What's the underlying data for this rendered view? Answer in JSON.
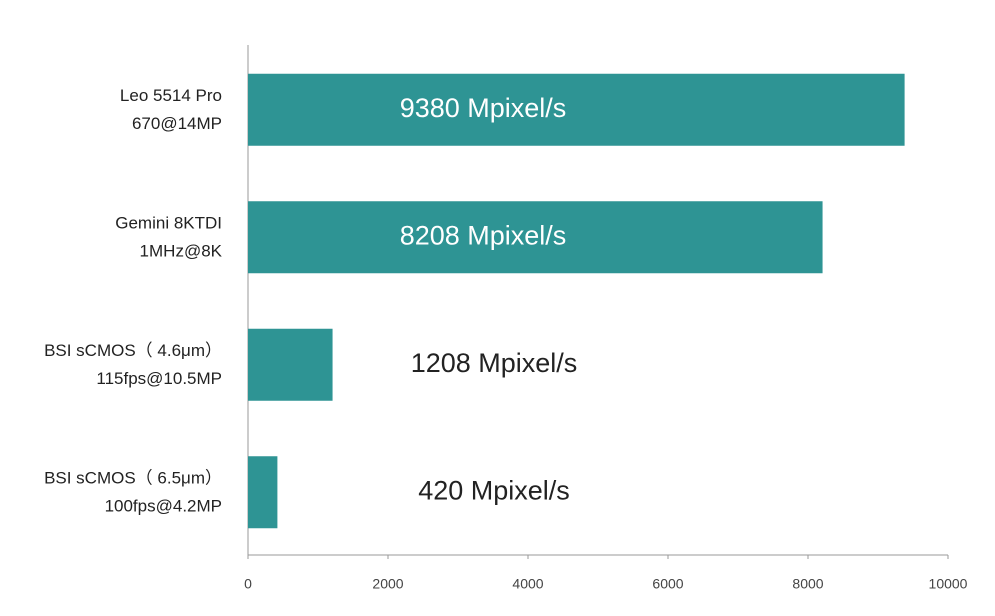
{
  "chart_data": {
    "type": "bar",
    "orientation": "horizontal",
    "categories": [
      [
        "Leo 5514 Pro",
        "670@14MP"
      ],
      [
        "Gemini 8KTDI",
        "1MHz@8K"
      ],
      [
        "BSI sCMOS（ 4.6μm）",
        "115fps@10.5MP"
      ],
      [
        "BSI sCMOS（ 6.5μm）",
        "100fps@4.2MP"
      ]
    ],
    "values": [
      9380,
      8208,
      1208,
      420
    ],
    "value_labels": [
      "9380 Mpixel/s",
      "8208 Mpixel/s",
      "1208 Mpixel/s",
      "420 Mpixel/s"
    ],
    "color": "#2e9494",
    "xlim": [
      0,
      10000
    ],
    "xticks": [
      0,
      2000,
      4000,
      6000,
      8000,
      10000
    ]
  }
}
